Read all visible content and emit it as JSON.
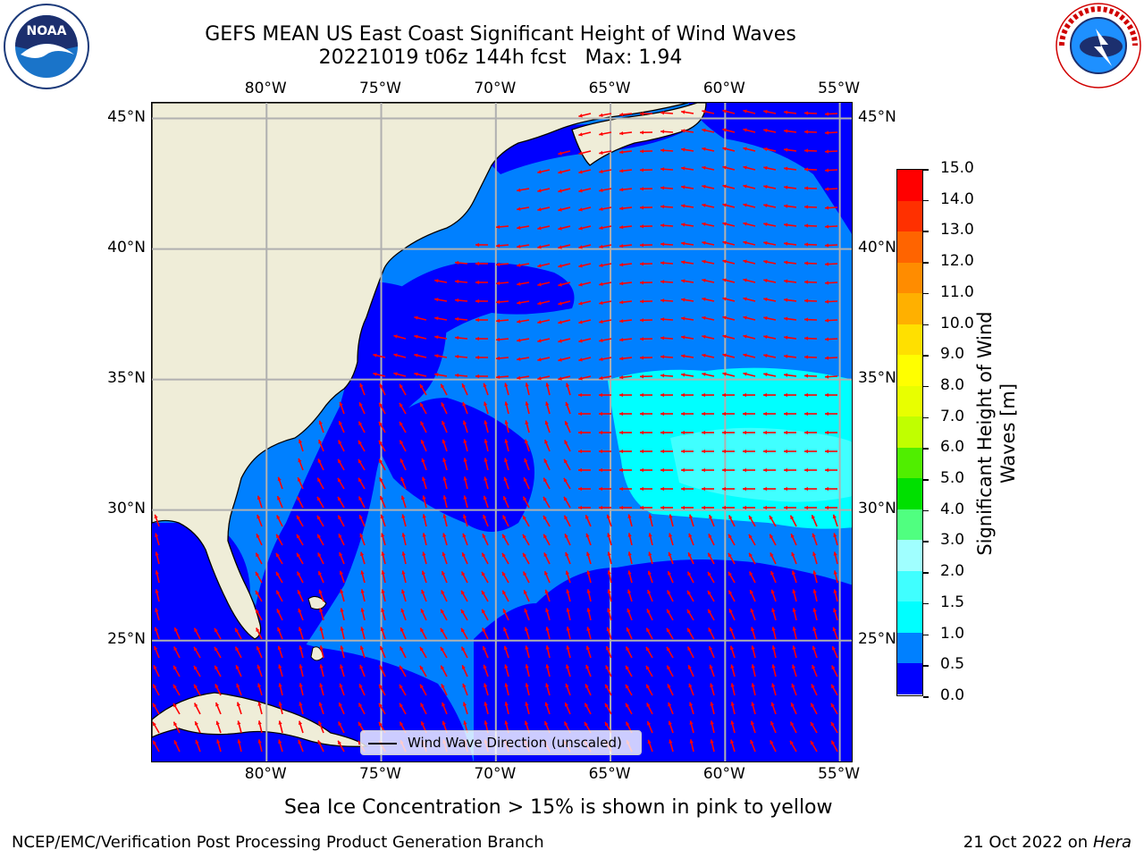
{
  "title": {
    "line1": "GEFS MEAN US East Coast Significant Height of Wind Waves",
    "line2": "20221019 t06z 144h fcst   Max: 1.94"
  },
  "logos": {
    "left": {
      "name": "NOAA",
      "text": "NOAA",
      "ring_text": "NATIONAL OCEANIC AND ATMOSPHERIC ADMINISTRATION · U.S. DEPARTMENT OF COMMERCE"
    },
    "right": {
      "name": "National Weather Service",
      "ring_text": "NATIONAL WEATHER SERVICE"
    }
  },
  "map": {
    "lon_labels": [
      "80°W",
      "75°W",
      "70°W",
      "65°W",
      "60°W",
      "55°W"
    ],
    "lat_labels": [
      "45°N",
      "40°N",
      "35°N",
      "30°N",
      "25°N"
    ],
    "lon_ticks": [
      -80,
      -75,
      -70,
      -65,
      -60,
      -55
    ],
    "lat_ticks": [
      45,
      40,
      35,
      30,
      25
    ],
    "extent": {
      "lon_min": -85,
      "lon_max": -54.4,
      "lat_min": 20.3,
      "lat_max": 45.6
    },
    "colors": {
      "land": "#efedd8",
      "grid": "#b0b0b0",
      "arrows": "#ff0000",
      "coast": "#000000"
    }
  },
  "colorbar": {
    "title_line1": "Significant Height of Wind",
    "title_line2": "Waves [m]",
    "tick_labels": [
      "0.0",
      "0.5",
      "1.0",
      "1.5",
      "2.0",
      "3.0",
      "4.0",
      "5.0",
      "6.0",
      "7.0",
      "8.0",
      "9.0",
      "10.0",
      "11.0",
      "12.0",
      "13.0",
      "14.0",
      "15.0"
    ],
    "colors": [
      "#0000ff",
      "#0080ff",
      "#00ffff",
      "#40ffff",
      "#a0ffff",
      "#50ff80",
      "#00e000",
      "#50ee00",
      "#c0ff00",
      "#e8ff00",
      "#ffff00",
      "#ffe000",
      "#ffb000",
      "#ff8c00",
      "#ff6400",
      "#ff3000",
      "#ff0000"
    ]
  },
  "legend": {
    "label": "Wind Wave Direction (unscaled)"
  },
  "note": "Sea Ice Concentration > 15% is shown in pink to yellow",
  "footer": {
    "left": "NCEP/EMC/Verification Post Processing Product Generation Branch",
    "right_date": "21 Oct 2022 on ",
    "right_machine": "Hera"
  }
}
